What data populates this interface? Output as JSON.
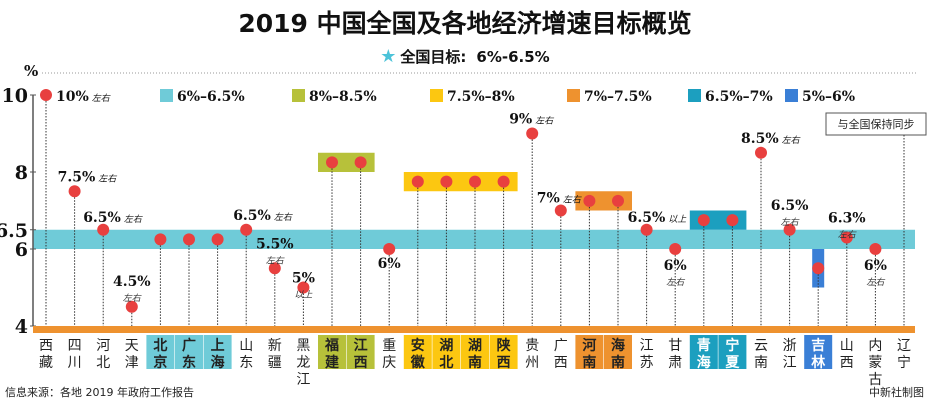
{
  "title": "2019 中国全国及各地经济增速目标概览",
  "subtitle": {
    "icon": "star-icon",
    "label": "全国目标:",
    "value": "6%-6.5%"
  },
  "footer": {
    "source": "信息来源：各地 2019 年政府工作报告",
    "credit": "中新社制图"
  },
  "chart_data": {
    "type": "scatter",
    "ylabel": "%",
    "yticks": [
      10,
      8,
      6.5,
      6,
      4
    ],
    "ylim": [
      4,
      10
    ],
    "national_target": [
      6,
      6.5
    ],
    "legend": [
      {
        "label": "6%–6.5%",
        "color": "#6fcbd8"
      },
      {
        "label": "8%–8.5%",
        "color": "#b7c13a"
      },
      {
        "label": "7.5%–8%",
        "color": "#fcc711"
      },
      {
        "label": "7%–7.5%",
        "color": "#ee922f"
      },
      {
        "label": "6.5%–7%",
        "color": "#1c9fbf"
      },
      {
        "label": "5%–6%",
        "color": "#3a7fd6"
      }
    ],
    "dot_color": "#e8403f",
    "provinces": [
      {
        "name": "西藏",
        "value": 10,
        "label": "10%",
        "note": "左右"
      },
      {
        "name": "四川",
        "value": 7.5,
        "label": "7.5%",
        "note": "左右"
      },
      {
        "name": "河北",
        "value": 6.5,
        "label": "6.5%",
        "note": "左右"
      },
      {
        "name": "天津",
        "value": 4.5,
        "label": "4.5%",
        "note": "左右"
      },
      {
        "name": "北京",
        "range": [
          6,
          6.5
        ],
        "group": 0
      },
      {
        "name": "广东",
        "range": [
          6,
          6.5
        ],
        "group": 0
      },
      {
        "name": "上海",
        "range": [
          6,
          6.5
        ],
        "group": 0
      },
      {
        "name": "山东",
        "value": 6.5,
        "label": "6.5%",
        "note": "左右"
      },
      {
        "name": "新疆",
        "value": 5.5,
        "label": "5.5%",
        "note": "左右"
      },
      {
        "name": "黑龙江",
        "value": 5,
        "label": "5%",
        "note": "以上"
      },
      {
        "name": "福建",
        "range": [
          8,
          8.5
        ],
        "group": 1
      },
      {
        "name": "江西",
        "range": [
          8,
          8.5
        ],
        "group": 1
      },
      {
        "name": "重庆",
        "value": 6,
        "label": "6%",
        "note": ""
      },
      {
        "name": "安徽",
        "range": [
          7.5,
          8
        ],
        "group": 2
      },
      {
        "name": "湖北",
        "range": [
          7.5,
          8
        ],
        "group": 2
      },
      {
        "name": "湖南",
        "range": [
          7.5,
          8
        ],
        "group": 2
      },
      {
        "name": "陕西",
        "range": [
          7.5,
          8
        ],
        "group": 2
      },
      {
        "name": "贵州",
        "value": 9,
        "label": "9%",
        "note": "左右"
      },
      {
        "name": "广西",
        "value": 7,
        "label": "7%",
        "note": "左右"
      },
      {
        "name": "河南",
        "range": [
          7,
          7.5
        ],
        "group": 3
      },
      {
        "name": "海南",
        "range": [
          7,
          7.5
        ],
        "group": 3
      },
      {
        "name": "江苏",
        "value": 6.5,
        "label": "6.5%",
        "note": "以上"
      },
      {
        "name": "甘肃",
        "value": 6,
        "label": "6%",
        "note": "左右"
      },
      {
        "name": "青海",
        "range": [
          6.5,
          7
        ],
        "group": 4
      },
      {
        "name": "宁夏",
        "range": [
          6.5,
          7
        ],
        "group": 4
      },
      {
        "name": "云南",
        "value": 8.5,
        "label": "8.5%",
        "note": "左右"
      },
      {
        "name": "浙江",
        "value": 6.5,
        "label": "6.5%",
        "note": "左右"
      },
      {
        "name": "吉林",
        "range": [
          5,
          6
        ],
        "group": 5
      },
      {
        "name": "山西",
        "value": 6.3,
        "label": "6.3%",
        "note": "左右"
      },
      {
        "name": "内蒙古",
        "value": 6,
        "label": "6%",
        "note": "左右"
      },
      {
        "name": "辽宁",
        "same_as_national": true,
        "label": "与全国保持同步"
      }
    ]
  }
}
